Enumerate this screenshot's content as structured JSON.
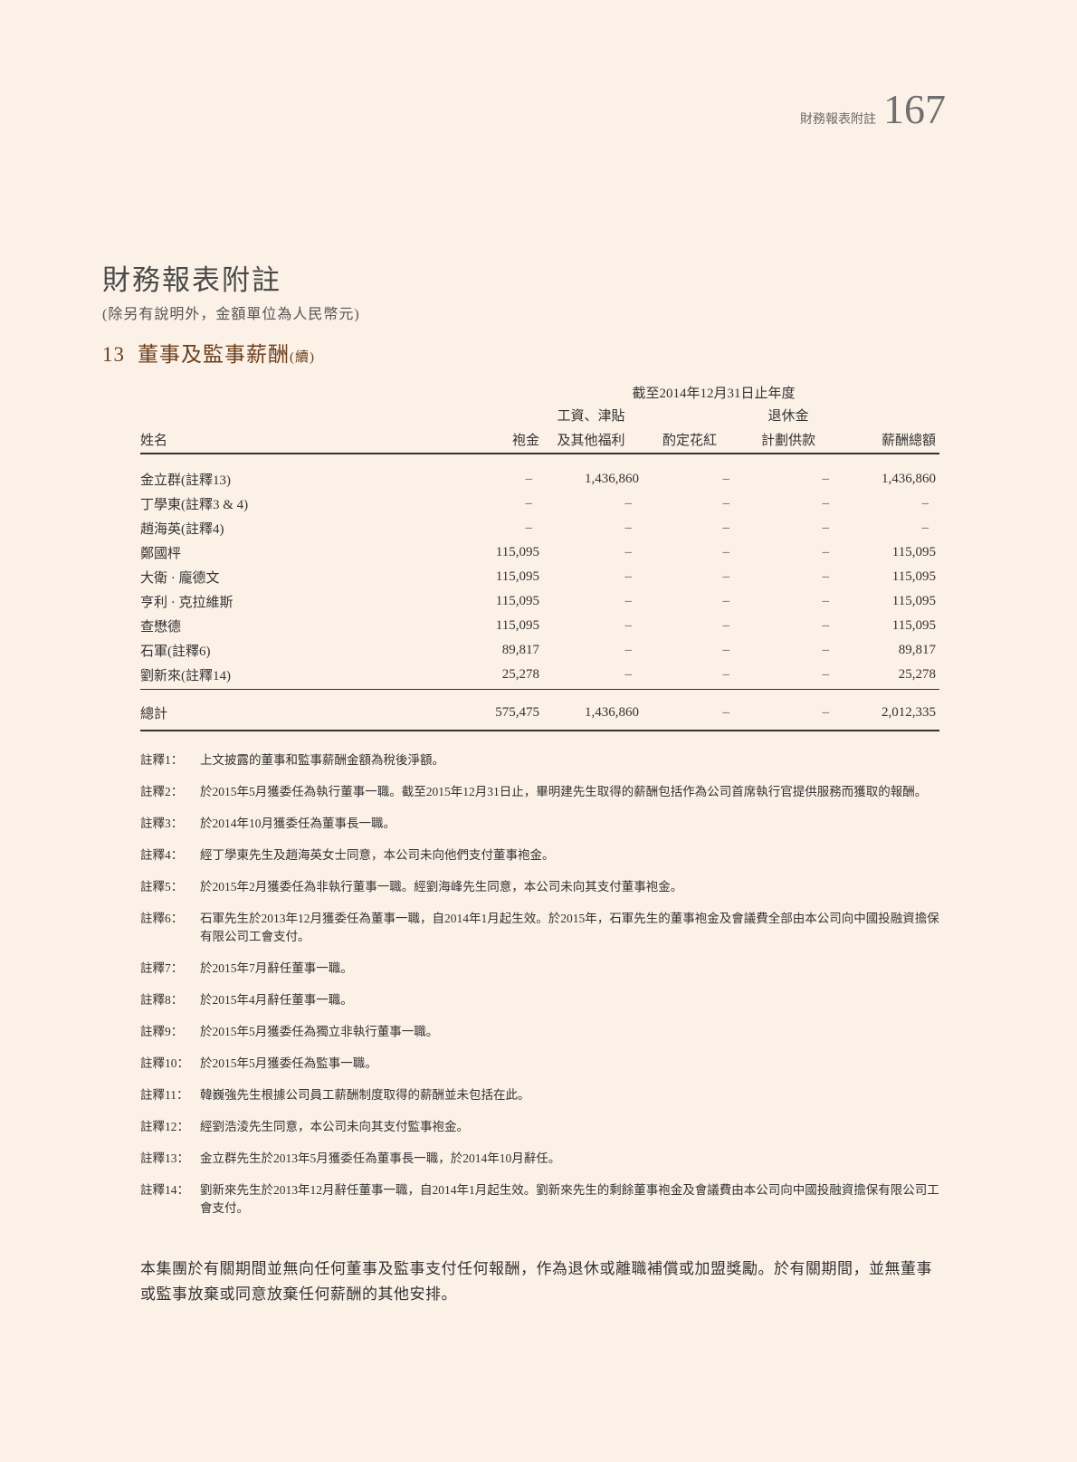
{
  "page_header": {
    "label": "財務報表附註",
    "page_number": "167"
  },
  "title": "財務報表附註",
  "subtitle": "(除另有說明外，金額單位為人民幣元)",
  "section": {
    "number": "13",
    "title": "董事及監事薪酬",
    "continued": "(續)"
  },
  "table": {
    "period": "截至2014年12月31日止年度",
    "headers": {
      "name": "姓名",
      "fees": "袍金",
      "salaries_line1": "工資、津貼",
      "salaries_line2": "及其他福利",
      "bonus": "酌定花紅",
      "retirement_line1": "退休金",
      "retirement_line2": "計劃供款",
      "total": "薪酬總額"
    },
    "rows": [
      {
        "name": "金立群(註釋13)",
        "fees": "–",
        "salaries": "1,436,860",
        "bonus": "–",
        "retirement": "–",
        "total": "1,436,860"
      },
      {
        "name": "丁學東(註釋3 & 4)",
        "fees": "–",
        "salaries": "–",
        "bonus": "–",
        "retirement": "–",
        "total": "–"
      },
      {
        "name": "趙海英(註釋4)",
        "fees": "–",
        "salaries": "–",
        "bonus": "–",
        "retirement": "–",
        "total": "–"
      },
      {
        "name": "鄭國枰",
        "fees": "115,095",
        "salaries": "–",
        "bonus": "–",
        "retirement": "–",
        "total": "115,095"
      },
      {
        "name": "大衛 · 龐德文",
        "fees": "115,095",
        "salaries": "–",
        "bonus": "–",
        "retirement": "–",
        "total": "115,095"
      },
      {
        "name": "亨利 · 克拉維斯",
        "fees": "115,095",
        "salaries": "–",
        "bonus": "–",
        "retirement": "–",
        "total": "115,095"
      },
      {
        "name": "查懋德",
        "fees": "115,095",
        "salaries": "–",
        "bonus": "–",
        "retirement": "–",
        "total": "115,095"
      },
      {
        "name": "石軍(註釋6)",
        "fees": "89,817",
        "salaries": "–",
        "bonus": "–",
        "retirement": "–",
        "total": "89,817"
      },
      {
        "name": "劉新來(註釋14)",
        "fees": "25,278",
        "salaries": "–",
        "bonus": "–",
        "retirement": "–",
        "total": "25,278"
      }
    ],
    "total_row": {
      "name": "總計",
      "fees": "575,475",
      "salaries": "1,436,860",
      "bonus": "–",
      "retirement": "–",
      "total": "2,012,335"
    }
  },
  "notes": [
    {
      "label": "註釋1：",
      "text": "上文披露的董事和監事薪酬金額為稅後淨額。"
    },
    {
      "label": "註釋2：",
      "text": "於2015年5月獲委任為執行董事一職。截至2015年12月31日止，畢明建先生取得的薪酬包括作為公司首席執行官提供服務而獲取的報酬。"
    },
    {
      "label": "註釋3：",
      "text": "於2014年10月獲委任為董事長一職。"
    },
    {
      "label": "註釋4：",
      "text": "經丁學東先生及趙海英女士同意，本公司未向他們支付董事袍金。"
    },
    {
      "label": "註釋5：",
      "text": "於2015年2月獲委任為非執行董事一職。經劉海峰先生同意，本公司未向其支付董事袍金。"
    },
    {
      "label": "註釋6：",
      "text": "石軍先生於2013年12月獲委任為董事一職，自2014年1月起生效。於2015年，石軍先生的董事袍金及會議費全部由本公司向中國投融資擔保有限公司工會支付。"
    },
    {
      "label": "註釋7：",
      "text": "於2015年7月辭任董事一職。"
    },
    {
      "label": "註釋8：",
      "text": "於2015年4月辭任董事一職。"
    },
    {
      "label": "註釋9：",
      "text": "於2015年5月獲委任為獨立非執行董事一職。"
    },
    {
      "label": "註釋10：",
      "text": "於2015年5月獲委任為監事一職。"
    },
    {
      "label": "註釋11：",
      "text": "韓巍強先生根據公司員工薪酬制度取得的薪酬並未包括在此。"
    },
    {
      "label": "註釋12：",
      "text": "經劉浩淩先生同意，本公司未向其支付監事袍金。"
    },
    {
      "label": "註釋13：",
      "text": "金立群先生於2013年5月獲委任為董事長一職，於2014年10月辭任。"
    },
    {
      "label": "註釋14：",
      "text": "劉新來先生於2013年12月辭任董事一職，自2014年1月起生效。劉新來先生的剩餘董事袍金及會議費由本公司向中國投融資擔保有限公司工會支付。"
    }
  ],
  "closing_paragraph": "本集團於有關期間並無向任何董事及監事支付任何報酬，作為退休或離職補償或加盟獎勵。於有關期間，並無董事或監事放棄或同意放棄任何薪酬的其他安排。"
}
